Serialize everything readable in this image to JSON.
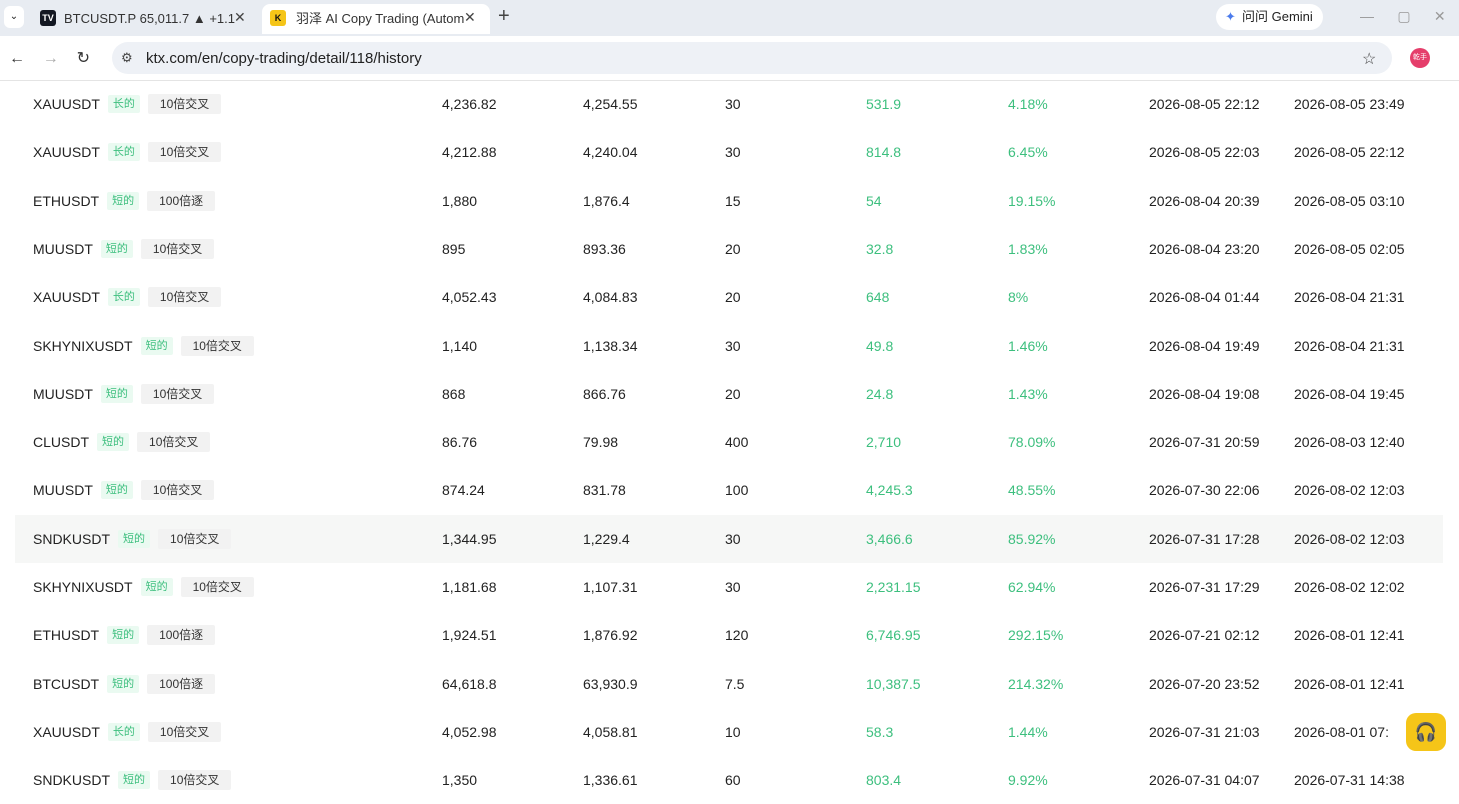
{
  "browser": {
    "tabs": [
      "BTCUSDT.P 65,011.7 ▲ +1.1",
      "羽泽 AI Copy Trading (Autom"
    ],
    "gemini": "问问 Gemini",
    "url": "ktx.com/en/copy-trading/detail/118/history",
    "avatar": "乾手"
  },
  "table": {
    "rows": [
      {
        "symbol": "XAUUSDT",
        "side": "长的",
        "leverage": "10倍交叉",
        "entry": "4,236.82",
        "exit": "4,254.55",
        "size": "30",
        "pnl": "531.9",
        "roi": "4.18%",
        "open": "2026-08-05 22:12",
        "close": "2026-08-05 23:49"
      },
      {
        "symbol": "XAUUSDT",
        "side": "长的",
        "leverage": "10倍交叉",
        "entry": "4,212.88",
        "exit": "4,240.04",
        "size": "30",
        "pnl": "814.8",
        "roi": "6.45%",
        "open": "2026-08-05 22:03",
        "close": "2026-08-05 22:12"
      },
      {
        "symbol": "ETHUSDT",
        "side": "短的",
        "leverage": "100倍逐",
        "entry": "1,880",
        "exit": "1,876.4",
        "size": "15",
        "pnl": "54",
        "roi": "19.15%",
        "open": "2026-08-04 20:39",
        "close": "2026-08-05 03:10"
      },
      {
        "symbol": "MUUSDT",
        "side": "短的",
        "leverage": "10倍交叉",
        "entry": "895",
        "exit": "893.36",
        "size": "20",
        "pnl": "32.8",
        "roi": "1.83%",
        "open": "2026-08-04 23:20",
        "close": "2026-08-05 02:05"
      },
      {
        "symbol": "XAUUSDT",
        "side": "长的",
        "leverage": "10倍交叉",
        "entry": "4,052.43",
        "exit": "4,084.83",
        "size": "20",
        "pnl": "648",
        "roi": "8%",
        "open": "2026-08-04 01:44",
        "close": "2026-08-04 21:31"
      },
      {
        "symbol": "SKHYNIXUSDT",
        "side": "短的",
        "leverage": "10倍交叉",
        "entry": "1,140",
        "exit": "1,138.34",
        "size": "30",
        "pnl": "49.8",
        "roi": "1.46%",
        "open": "2026-08-04 19:49",
        "close": "2026-08-04 21:31"
      },
      {
        "symbol": "MUUSDT",
        "side": "短的",
        "leverage": "10倍交叉",
        "entry": "868",
        "exit": "866.76",
        "size": "20",
        "pnl": "24.8",
        "roi": "1.43%",
        "open": "2026-08-04 19:08",
        "close": "2026-08-04 19:45"
      },
      {
        "symbol": "CLUSDT",
        "side": "短的",
        "leverage": "10倍交叉",
        "entry": "86.76",
        "exit": "79.98",
        "size": "400",
        "pnl": "2,710",
        "roi": "78.09%",
        "open": "2026-07-31 20:59",
        "close": "2026-08-03 12:40"
      },
      {
        "symbol": "MUUSDT",
        "side": "短的",
        "leverage": "10倍交叉",
        "entry": "874.24",
        "exit": "831.78",
        "size": "100",
        "pnl": "4,245.3",
        "roi": "48.55%",
        "open": "2026-07-30 22:06",
        "close": "2026-08-02 12:03"
      },
      {
        "symbol": "SNDKUSDT",
        "side": "短的",
        "leverage": "10倍交叉",
        "entry": "1,344.95",
        "exit": "1,229.4",
        "size": "30",
        "pnl": "3,466.6",
        "roi": "85.92%",
        "open": "2026-07-31 17:28",
        "close": "2026-08-02 12:03"
      },
      {
        "symbol": "SKHYNIXUSDT",
        "side": "短的",
        "leverage": "10倍交叉",
        "entry": "1,181.68",
        "exit": "1,107.31",
        "size": "30",
        "pnl": "2,231.15",
        "roi": "62.94%",
        "open": "2026-07-31 17:29",
        "close": "2026-08-02 12:02"
      },
      {
        "symbol": "ETHUSDT",
        "side": "短的",
        "leverage": "100倍逐",
        "entry": "1,924.51",
        "exit": "1,876.92",
        "size": "120",
        "pnl": "6,746.95",
        "roi": "292.15%",
        "open": "2026-07-21 02:12",
        "close": "2026-08-01 12:41"
      },
      {
        "symbol": "BTCUSDT",
        "side": "短的",
        "leverage": "100倍逐",
        "entry": "64,618.8",
        "exit": "63,930.9",
        "size": "7.5",
        "pnl": "10,387.5",
        "roi": "214.32%",
        "open": "2026-07-20 23:52",
        "close": "2026-08-01 12:41"
      },
      {
        "symbol": "XAUUSDT",
        "side": "长的",
        "leverage": "10倍交叉",
        "entry": "4,052.98",
        "exit": "4,058.81",
        "size": "10",
        "pnl": "58.3",
        "roi": "1.44%",
        "open": "2026-07-31 21:03",
        "close": "2026-08-01 07:"
      },
      {
        "symbol": "SNDKUSDT",
        "side": "短的",
        "leverage": "10倍交叉",
        "entry": "1,350",
        "exit": "1,336.61",
        "size": "60",
        "pnl": "803.4",
        "roi": "9.92%",
        "open": "2026-07-31 04:07",
        "close": "2026-07-31 14:38"
      }
    ]
  }
}
